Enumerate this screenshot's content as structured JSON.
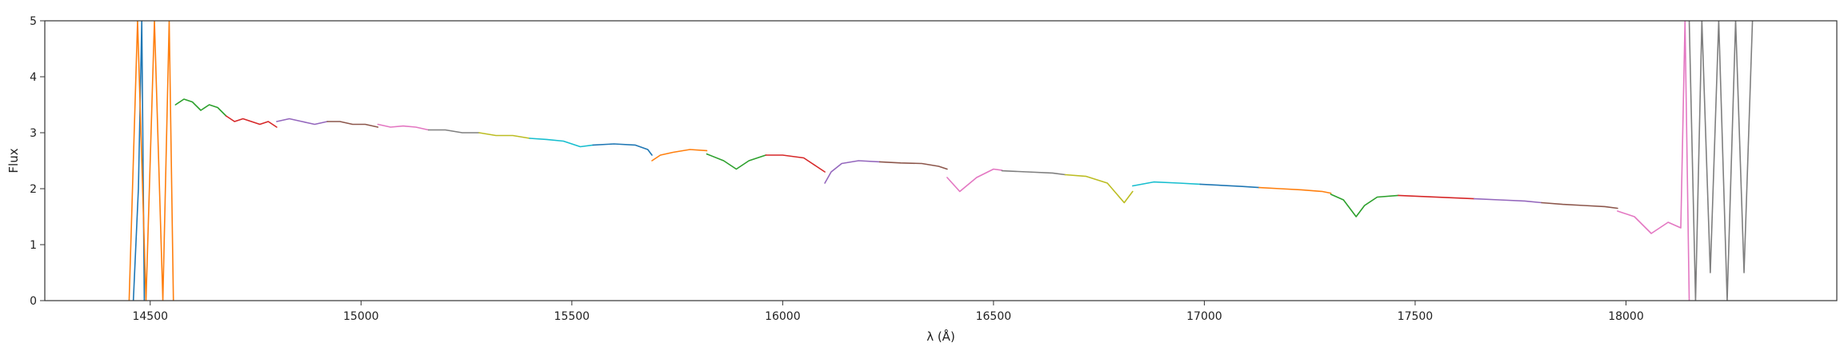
{
  "chart_data": {
    "type": "line",
    "title": "",
    "xlabel": "λ (Å)",
    "ylabel": "Flux",
    "xlim": [
      14250,
      18500
    ],
    "ylim": [
      0,
      5
    ],
    "xticks": [
      14500,
      15000,
      15500,
      16000,
      16500,
      17000,
      17500,
      18000
    ],
    "yticks": [
      0,
      1,
      2,
      3,
      4,
      5
    ],
    "grid": false,
    "legend": "none",
    "series": [
      {
        "color": "#1f77b4",
        "x": [
          14460,
          14472,
          14480,
          14486
        ],
        "y": [
          0,
          2.0,
          5.0,
          0
        ]
      },
      {
        "color": "#ff7f0e",
        "x": [
          14450,
          14470,
          14490,
          14510,
          14530,
          14545,
          14555
        ],
        "y": [
          0,
          5.0,
          0,
          5.0,
          0,
          5.0,
          0
        ]
      },
      {
        "color": "#2ca02c",
        "x": [
          14560,
          14580,
          14600,
          14620,
          14640,
          14660,
          14680
        ],
        "y": [
          3.5,
          3.6,
          3.55,
          3.4,
          3.5,
          3.45,
          3.3
        ]
      },
      {
        "color": "#d62728",
        "x": [
          14680,
          14700,
          14720,
          14740,
          14760,
          14780,
          14800
        ],
        "y": [
          3.3,
          3.2,
          3.25,
          3.2,
          3.15,
          3.2,
          3.1
        ]
      },
      {
        "color": "#9467bd",
        "x": [
          14800,
          14830,
          14860,
          14890,
          14920
        ],
        "y": [
          3.2,
          3.25,
          3.2,
          3.15,
          3.2
        ]
      },
      {
        "color": "#8c564b",
        "x": [
          14920,
          14950,
          14980,
          15010,
          15040
        ],
        "y": [
          3.2,
          3.2,
          3.15,
          3.15,
          3.1
        ]
      },
      {
        "color": "#e377c2",
        "x": [
          15040,
          15070,
          15100,
          15130,
          15160
        ],
        "y": [
          3.15,
          3.1,
          3.12,
          3.1,
          3.05
        ]
      },
      {
        "color": "#7f7f7f",
        "x": [
          15160,
          15200,
          15240,
          15280
        ],
        "y": [
          3.05,
          3.05,
          3.0,
          3.0
        ]
      },
      {
        "color": "#bcbd22",
        "x": [
          15280,
          15320,
          15360,
          15400
        ],
        "y": [
          3.0,
          2.95,
          2.95,
          2.9
        ]
      },
      {
        "color": "#17becf",
        "x": [
          15400,
          15440,
          15480,
          15520,
          15550
        ],
        "y": [
          2.9,
          2.88,
          2.85,
          2.75,
          2.78
        ]
      },
      {
        "color": "#1f77b4",
        "x": [
          15550,
          15600,
          15650,
          15680,
          15690
        ],
        "y": [
          2.78,
          2.8,
          2.78,
          2.7,
          2.6
        ]
      },
      {
        "color": "#ff7f0e",
        "x": [
          15690,
          15710,
          15740,
          15780,
          15820
        ],
        "y": [
          2.5,
          2.6,
          2.65,
          2.7,
          2.68
        ]
      },
      {
        "color": "#2ca02c",
        "x": [
          15820,
          15860,
          15890,
          15920,
          15960
        ],
        "y": [
          2.62,
          2.5,
          2.35,
          2.5,
          2.6
        ]
      },
      {
        "color": "#d62728",
        "x": [
          15960,
          16000,
          16050,
          16080,
          16100
        ],
        "y": [
          2.6,
          2.6,
          2.55,
          2.4,
          2.3
        ]
      },
      {
        "color": "#9467bd",
        "x": [
          16100,
          16115,
          16140,
          16180,
          16230
        ],
        "y": [
          2.1,
          2.3,
          2.45,
          2.5,
          2.48
        ]
      },
      {
        "color": "#8c564b",
        "x": [
          16230,
          16280,
          16330,
          16370,
          16390
        ],
        "y": [
          2.48,
          2.46,
          2.45,
          2.4,
          2.35
        ]
      },
      {
        "color": "#e377c2",
        "x": [
          16390,
          16420,
          16460,
          16500,
          16520
        ],
        "y": [
          2.2,
          1.95,
          2.2,
          2.35,
          2.33
        ]
      },
      {
        "color": "#7f7f7f",
        "x": [
          16520,
          16580,
          16640,
          16670
        ],
        "y": [
          2.32,
          2.3,
          2.28,
          2.25
        ]
      },
      {
        "color": "#bcbd22",
        "x": [
          16670,
          16720,
          16770,
          16810,
          16830
        ],
        "y": [
          2.25,
          2.22,
          2.1,
          1.75,
          1.95
        ]
      },
      {
        "color": "#17becf",
        "x": [
          16830,
          16880,
          16940,
          16990
        ],
        "y": [
          2.05,
          2.12,
          2.1,
          2.08
        ]
      },
      {
        "color": "#1f77b4",
        "x": [
          16990,
          17040,
          17090,
          17130
        ],
        "y": [
          2.08,
          2.06,
          2.04,
          2.02
        ]
      },
      {
        "color": "#ff7f0e",
        "x": [
          17130,
          17180,
          17230,
          17280,
          17300
        ],
        "y": [
          2.02,
          2.0,
          1.98,
          1.95,
          1.92
        ]
      },
      {
        "color": "#2ca02c",
        "x": [
          17300,
          17330,
          17360,
          17380,
          17410,
          17460
        ],
        "y": [
          1.9,
          1.8,
          1.5,
          1.7,
          1.85,
          1.88
        ]
      },
      {
        "color": "#d62728",
        "x": [
          17460,
          17520,
          17580,
          17640
        ],
        "y": [
          1.88,
          1.86,
          1.84,
          1.82
        ]
      },
      {
        "color": "#9467bd",
        "x": [
          17640,
          17700,
          17760,
          17800
        ],
        "y": [
          1.82,
          1.8,
          1.78,
          1.75
        ]
      },
      {
        "color": "#8c564b",
        "x": [
          17800,
          17850,
          17900,
          17950,
          17980
        ],
        "y": [
          1.75,
          1.72,
          1.7,
          1.68,
          1.65
        ]
      },
      {
        "color": "#e377c2",
        "x": [
          17980,
          18020,
          18060,
          18100,
          18130,
          18140,
          18150
        ],
        "y": [
          1.6,
          1.5,
          1.2,
          1.4,
          1.3,
          5.0,
          0
        ]
      },
      {
        "color": "#7f7f7f",
        "x": [
          18150,
          18165,
          18180,
          18200,
          18220,
          18240,
          18260,
          18280,
          18300
        ],
        "y": [
          5.0,
          0,
          5.0,
          0.5,
          5.0,
          0,
          5.0,
          0.5,
          5.0
        ]
      }
    ]
  }
}
